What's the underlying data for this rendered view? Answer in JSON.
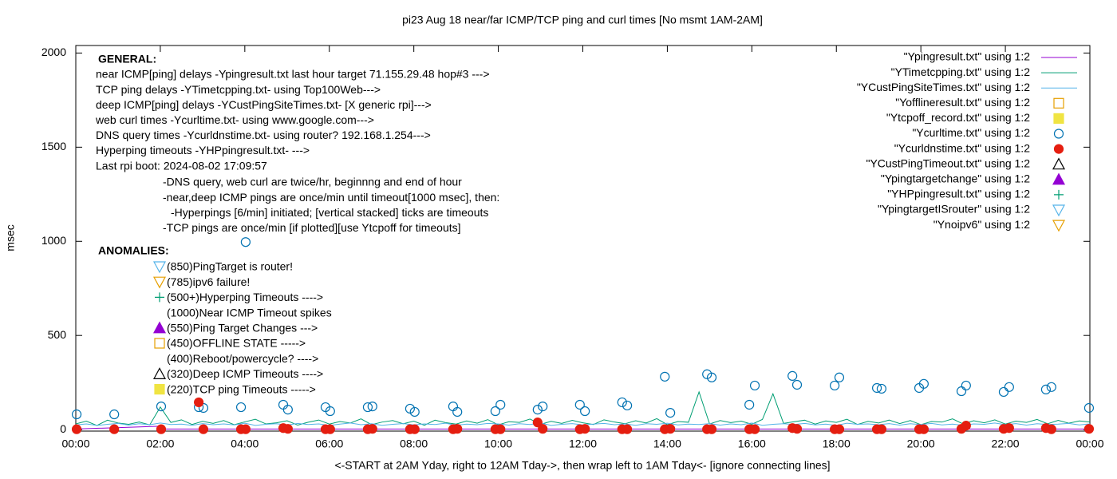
{
  "chart_data": {
    "type": "line",
    "title": "pi23 Aug 18  near/far ICMP/TCP ping and curl times [No msmt 1AM-2AM]",
    "x_label": "<-START at 2AM Yday, right to 12AM Tday->, then wrap left to 1AM Tday<- [ignore connecting lines]",
    "y_label": "msec",
    "xlim": [
      0,
      24
    ],
    "xticks": [
      {
        "value": 0,
        "label": "00:00"
      },
      {
        "value": 2,
        "label": "02:00"
      },
      {
        "value": 4,
        "label": "04:00"
      },
      {
        "value": 6,
        "label": "06:00"
      },
      {
        "value": 8,
        "label": "08:00"
      },
      {
        "value": 10,
        "label": "10:00"
      },
      {
        "value": 12,
        "label": "12:00"
      },
      {
        "value": 14,
        "label": "14:00"
      },
      {
        "value": 16,
        "label": "16:00"
      },
      {
        "value": 18,
        "label": "18:00"
      },
      {
        "value": 20,
        "label": "20:00"
      },
      {
        "value": 22,
        "label": "22:00"
      },
      {
        "value": 24,
        "label": "00:00"
      }
    ],
    "ylim": [
      -8,
      2040
    ],
    "yticks": [
      0,
      500,
      1000,
      1500,
      2000
    ],
    "grid": false,
    "legend": "top-right",
    "annotations": {
      "general_heading": "GENERAL:",
      "general_lines": [
        "near ICMP[ping] delays -Ypingresult.txt last hour target 71.155.29.48 hop#3 --->",
        "TCP ping delays -YTimetcpping.txt- using Top100Web--->",
        "deep ICMP[ping] delays -YCustPingSiteTimes.txt- [X generic rpi]--->",
        "web curl times -Ycurltime.txt- using www.google.com--->",
        "DNS query times -Ycurldnstime.txt- using router? 192.168.1.254--->",
        "Hyperping timeouts -YHPpingresult.txt- --->",
        "Last rpi boot: 2024-08-02 17:09:57"
      ],
      "notes": [
        "-DNS query, web curl are twice/hr, beginnng and end of hour",
        "-near,deep ICMP pings are once/min until timeout[1000 msec], then:",
        "-Hyperpings [6/min] initiated; [vertical stacked] ticks are timeouts",
        "-TCP pings are once/min [if plotted][use Ytcpoff for timeouts]"
      ],
      "anomalies_heading": "ANOMALIES:",
      "anomalies": [
        "(850)PingTarget is router!",
        "(785)ipv6 failure!",
        "(500+)Hyperping Timeouts ---->",
        "(1000)Near ICMP Timeout spikes",
        "(550)Ping Target Changes --->",
        "(450)OFFLINE STATE ----->",
        "(400)Reboot/powercycle? ---->",
        "(320)Deep ICMP Timeouts ---->",
        "(220)TCP ping Timeouts ----->"
      ]
    },
    "x": [
      0,
      0.25,
      0.5,
      0.75,
      1,
      1.25,
      1.5,
      1.75,
      2,
      2.25,
      2.5,
      2.75,
      3,
      3.25,
      3.5,
      3.75,
      4,
      4.25,
      4.5,
      4.75,
      5,
      5.25,
      5.5,
      5.75,
      6,
      6.25,
      6.5,
      6.75,
      7,
      7.25,
      7.5,
      7.75,
      8,
      8.25,
      8.5,
      8.75,
      9,
      9.25,
      9.5,
      9.75,
      10,
      10.25,
      10.5,
      10.75,
      11,
      11.25,
      11.5,
      11.75,
      12,
      12.25,
      12.5,
      12.75,
      13,
      13.25,
      13.5,
      13.75,
      14,
      14.25,
      14.5,
      14.75,
      15,
      15.25,
      15.5,
      15.75,
      16,
      16.25,
      16.5,
      16.75,
      17,
      17.25,
      17.5,
      17.75,
      18,
      18.25,
      18.5,
      18.75,
      19,
      19.25,
      19.5,
      19.75,
      20,
      20.25,
      20.5,
      20.75,
      21,
      21.25,
      21.5,
      21.75,
      22,
      22.25,
      22.5,
      22.75,
      23,
      23.25,
      23.5,
      23.75,
      24
    ],
    "series": [
      {
        "name": "\"Ypingresult.txt\" using 1:2",
        "color": "#9400d3",
        "marker": "line",
        "x": [
          0,
          2,
          2.05,
          24
        ],
        "values": [
          3,
          18,
          3,
          3
        ]
      },
      {
        "name": "\"YTimetcpping.txt\" using 1:2",
        "color": "#009e73",
        "marker": "line",
        "values": [
          30,
          45,
          22,
          50,
          35,
          28,
          40,
          25,
          120,
          38,
          52,
          27,
          44,
          33,
          48,
          26,
          41,
          55,
          30,
          36,
          47,
          24,
          39,
          51,
          29,
          43,
          35,
          57,
          26,
          40,
          48,
          31,
          45,
          23,
          50,
          37,
          29,
          46,
          34,
          53,
          25,
          42,
          38,
          56,
          28,
          44,
          33,
          49,
          36,
          27,
          52,
          40,
          31,
          47,
          35,
          58,
          26,
          43,
          39,
          200,
          30,
          48,
          37,
          45,
          28,
          54,
          190,
          33,
          42,
          50,
          29,
          46,
          38,
          55,
          27,
          44,
          35,
          51,
          32,
          48,
          26,
          43,
          40,
          57,
          30,
          47,
          36,
          52,
          29,
          45,
          38,
          54,
          31,
          49,
          34,
          46,
          40
        ]
      },
      {
        "name": "\"YCustPingSiteTimes.txt\" using 1:2",
        "color": "#56b4e9",
        "marker": "line",
        "values": [
          25,
          30,
          22,
          28,
          33,
          24,
          31,
          26,
          35,
          27,
          29,
          23,
          32,
          26,
          30,
          25,
          34,
          22,
          28,
          31,
          24,
          33,
          27,
          30,
          22,
          29,
          35,
          26,
          31,
          23,
          28,
          32,
          25,
          30,
          27,
          34,
          23,
          29,
          26,
          33,
          30,
          24,
          31,
          27,
          35,
          22,
          28,
          32,
          25,
          29,
          33,
          26,
          30,
          23,
          31,
          28,
          34,
          25,
          29,
          27,
          32,
          24,
          30,
          26,
          35,
          23,
          28,
          31,
          27,
          33,
          25,
          29,
          22,
          34,
          28,
          30,
          26,
          32,
          24,
          31,
          27,
          33,
          25,
          29,
          23,
          30,
          28,
          35,
          26,
          32,
          24,
          31,
          27,
          29,
          33,
          25,
          30
        ]
      },
      {
        "name": "\"Yofflineresult.txt\" using 1:2",
        "color": "#e69f00",
        "marker": "square",
        "x": [],
        "values": []
      },
      {
        "name": "\"Ytcpoff_record.txt\" using 1:2",
        "color": "#f0e442",
        "marker": "square-filled",
        "x": [],
        "values": []
      },
      {
        "name": "\"Ycurltime.txt\" using 1:2",
        "color": "#0072b2",
        "marker": "circle",
        "x": [
          0.02,
          0.91,
          2.02,
          2.91,
          3.02,
          3.91,
          4.02,
          4.91,
          5.02,
          5.91,
          6.02,
          6.91,
          7.02,
          7.91,
          8.02,
          8.93,
          9.03,
          9.93,
          10.05,
          10.93,
          11.05,
          11.93,
          12.05,
          12.93,
          13.05,
          13.94,
          14.07,
          14.94,
          15.05,
          15.94,
          16.07,
          16.96,
          17.07,
          17.96,
          18.07,
          18.96,
          19.07,
          19.96,
          20.07,
          20.96,
          21.07,
          21.96,
          22.09,
          22.96,
          23.09,
          23.98
        ],
        "values": [
          81,
          81,
          123,
          119,
          115,
          119,
          996,
          132,
          106,
          119,
          98,
          119,
          123,
          111,
          94,
          123,
          94,
          98,
          132,
          106,
          123,
          132,
          98,
          145,
          128,
          281,
          89,
          294,
          277,
          132,
          234,
          285,
          238,
          234,
          277,
          221,
          217,
          221,
          243,
          204,
          234,
          200,
          226,
          213,
          226,
          115
        ]
      },
      {
        "name": "\"Ycurldnstime.txt\" using 1:2",
        "color": "#e51e10",
        "marker": "circle-filled",
        "x": [
          0.02,
          0.91,
          2.02,
          2.91,
          3.02,
          3.91,
          4.02,
          4.91,
          5.02,
          5.91,
          6.02,
          6.91,
          7.02,
          7.91,
          8.02,
          8.93,
          9.03,
          9.93,
          10.05,
          10.93,
          11.05,
          11.93,
          12.05,
          12.93,
          13.05,
          13.94,
          14.07,
          14.94,
          15.05,
          15.94,
          16.07,
          16.96,
          17.07,
          17.96,
          18.07,
          18.96,
          19.07,
          19.96,
          20.07,
          20.96,
          21.07,
          21.96,
          22.09,
          22.96,
          23.09,
          23.98
        ],
        "values": [
          2,
          2,
          2,
          145,
          2,
          2,
          2,
          8,
          4,
          2,
          2,
          2,
          4,
          2,
          2,
          2,
          4,
          2,
          2,
          38,
          4,
          2,
          4,
          2,
          2,
          2,
          4,
          2,
          2,
          2,
          2,
          8,
          4,
          2,
          2,
          2,
          2,
          2,
          2,
          4,
          21,
          4,
          8,
          8,
          2,
          4
        ]
      },
      {
        "name": "\"YCustPingTimeout.txt\" using 1:2",
        "color": "#000000",
        "marker": "triangle",
        "x": [],
        "values": []
      },
      {
        "name": "\"Ypingtargetchange\" using 1:2",
        "color": "#9400d3",
        "marker": "triangle-filled",
        "x": [],
        "values": []
      },
      {
        "name": "\"YHPpingresult.txt\" using 1:2",
        "color": "#009e73",
        "marker": "plus",
        "x": [],
        "values": []
      },
      {
        "name": "\"YpingtargetISrouter\" using 1:2",
        "color": "#56b4e9",
        "marker": "triangle-down",
        "x": [],
        "values": []
      },
      {
        "name": "\"Ynoipv6\" using 1:2",
        "color": "#e69f00",
        "marker": "triangle-down",
        "x": [],
        "values": []
      }
    ]
  }
}
